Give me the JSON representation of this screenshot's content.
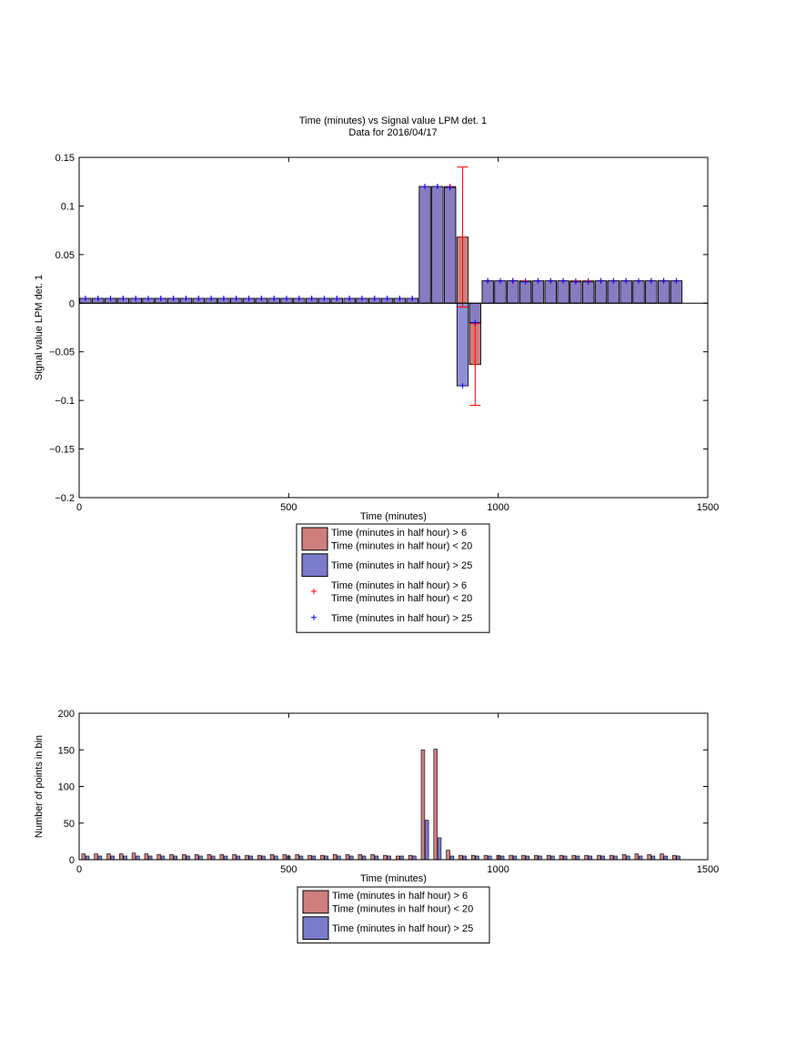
{
  "chart_data": [
    {
      "type": "bar",
      "title": "Time (minutes) vs Signal value LPM det. 1",
      "subtitle": "Data for 2016/04/17",
      "xlabel": "Time (minutes)",
      "ylabel": "Signal value LPM det. 1",
      "xlim": [
        0,
        1500
      ],
      "ylim": [
        -0.2,
        0.15
      ],
      "xticks": [
        "0",
        "500",
        "1000",
        "1500"
      ],
      "yticks": [
        "0.15",
        "0.1",
        "0.05",
        "0",
        "−0.05",
        "−0.1",
        "−0.15",
        "−0.2"
      ],
      "grid": false,
      "legend_position": "bottom-center",
      "series": [
        {
          "name": "Time (minutes in half hour) > 6\nTime (minutes in half hour) < 20",
          "color": "#cf7e7e",
          "x": [
            15,
            45,
            75,
            105,
            135,
            165,
            195,
            225,
            255,
            285,
            315,
            345,
            375,
            405,
            435,
            465,
            495,
            525,
            555,
            585,
            615,
            645,
            675,
            705,
            735,
            765,
            795,
            825,
            855,
            885,
            915,
            945,
            975,
            1005,
            1035,
            1065,
            1095,
            1125,
            1155,
            1185,
            1215,
            1245,
            1275,
            1305,
            1335,
            1365,
            1395,
            1425
          ],
          "values": [
            0.005,
            0.005,
            0.005,
            0.005,
            0.005,
            0.005,
            0.005,
            0.005,
            0.005,
            0.005,
            0.005,
            0.005,
            0.005,
            0.005,
            0.005,
            0.005,
            0.005,
            0.005,
            0.005,
            0.005,
            0.005,
            0.005,
            0.005,
            0.005,
            0.005,
            0.005,
            0.005,
            0.12,
            0.12,
            0.12,
            0.068,
            -0.063,
            0.023,
            0.023,
            0.023,
            0.023,
            0.023,
            0.023,
            0.023,
            0.023,
            0.023,
            0.023,
            0.023,
            0.023,
            0.023,
            0.023,
            0.023,
            0.023
          ],
          "errors": [
            0,
            0,
            0,
            0,
            0,
            0,
            0,
            0,
            0,
            0,
            0,
            0,
            0,
            0,
            0,
            0,
            0,
            0,
            0,
            0,
            0,
            0,
            0,
            0,
            0,
            0,
            0,
            0,
            0,
            0,
            0.072,
            0.042,
            0,
            0,
            0,
            0,
            0,
            0,
            0,
            0,
            0,
            0,
            0,
            0,
            0,
            0,
            0,
            0
          ]
        },
        {
          "name": "Time (minutes in half hour) > 25",
          "color": "#7b7bcc",
          "x": [
            15,
            45,
            75,
            105,
            135,
            165,
            195,
            225,
            255,
            285,
            315,
            345,
            375,
            405,
            435,
            465,
            495,
            525,
            555,
            585,
            615,
            645,
            675,
            705,
            735,
            765,
            795,
            825,
            855,
            885,
            915,
            945,
            975,
            1005,
            1035,
            1065,
            1095,
            1125,
            1155,
            1185,
            1215,
            1245,
            1275,
            1305,
            1335,
            1365,
            1395,
            1425
          ],
          "values": [
            0.005,
            0.005,
            0.005,
            0.005,
            0.005,
            0.005,
            0.005,
            0.005,
            0.005,
            0.005,
            0.005,
            0.005,
            0.005,
            0.005,
            0.005,
            0.005,
            0.005,
            0.005,
            0.005,
            0.005,
            0.005,
            0.005,
            0.005,
            0.005,
            0.005,
            0.005,
            0.005,
            0.12,
            0.12,
            0.119,
            -0.085,
            -0.02,
            0.023,
            0.023,
            0.023,
            0.022,
            0.023,
            0.023,
            0.023,
            0.022,
            0.022,
            0.023,
            0.023,
            0.023,
            0.023,
            0.023,
            0.023,
            0.023
          ]
        }
      ],
      "legend_entries": [
        {
          "lines": [
            "Time (minutes in half hour) > 6",
            "Time (minutes in half hour) < 20"
          ],
          "marker": "patch",
          "color": "#cf7e7e"
        },
        {
          "lines": [
            "Time (minutes in half hour) > 25"
          ],
          "marker": "patch",
          "color": "#7b7bcc"
        },
        {
          "lines": [
            "Time (minutes in half hour) > 6",
            "Time (minutes in half hour) < 20"
          ],
          "marker": "plus",
          "color": "#ff0000"
        },
        {
          "lines": [
            "Time (minutes in half hour) > 25"
          ],
          "marker": "plus",
          "color": "#0000ff"
        }
      ]
    },
    {
      "type": "bar",
      "title": "",
      "xlabel": "Time (minutes)",
      "ylabel": "Number of points in bin",
      "xlim": [
        0,
        1500
      ],
      "ylim": [
        0,
        200
      ],
      "xticks": [
        "0",
        "500",
        "1000",
        "1500"
      ],
      "yticks": [
        "200",
        "150",
        "100",
        "50",
        "0"
      ],
      "grid": false,
      "legend_position": "bottom-center",
      "series": [
        {
          "name": "Time (minutes in half hour) > 6\nTime (minutes in half hour) < 20",
          "color": "#cf7e7e",
          "x": [
            15,
            45,
            75,
            105,
            135,
            165,
            195,
            225,
            255,
            285,
            315,
            345,
            375,
            405,
            435,
            465,
            495,
            525,
            555,
            585,
            615,
            645,
            675,
            705,
            735,
            765,
            795,
            825,
            855,
            885,
            915,
            945,
            975,
            1005,
            1035,
            1065,
            1095,
            1125,
            1155,
            1185,
            1215,
            1245,
            1275,
            1305,
            1335,
            1365,
            1395,
            1425
          ],
          "values": [
            8,
            8,
            8,
            8,
            9,
            8,
            7,
            7,
            7,
            7,
            7,
            7,
            7,
            6,
            6,
            7,
            7,
            7,
            6,
            6,
            7,
            7,
            7,
            7,
            6,
            5,
            6,
            150,
            151,
            13,
            6,
            6,
            6,
            6,
            6,
            6,
            6,
            6,
            6,
            6,
            6,
            6,
            6,
            7,
            8,
            7,
            8,
            6
          ]
        },
        {
          "name": "Time (minutes in half hour) > 25",
          "color": "#7b7bcc",
          "x": [
            15,
            45,
            75,
            105,
            135,
            165,
            195,
            225,
            255,
            285,
            315,
            345,
            375,
            405,
            435,
            465,
            495,
            525,
            555,
            585,
            615,
            645,
            675,
            705,
            735,
            765,
            795,
            825,
            855,
            885,
            915,
            945,
            975,
            1005,
            1035,
            1065,
            1095,
            1125,
            1155,
            1185,
            1215,
            1245,
            1275,
            1305,
            1335,
            1365,
            1395,
            1425
          ],
          "values": [
            5,
            5,
            5,
            5,
            5,
            5,
            5,
            5,
            5,
            5,
            5,
            5,
            5,
            5,
            5,
            5,
            5,
            5,
            5,
            5,
            5,
            5,
            5,
            5,
            5,
            5,
            5,
            54,
            30,
            5,
            5,
            5,
            5,
            5,
            5,
            5,
            5,
            5,
            5,
            5,
            5,
            5,
            5,
            5,
            5,
            5,
            5,
            5
          ]
        }
      ],
      "legend_entries": [
        {
          "lines": [
            "Time (minutes in half hour) > 6",
            "Time (minutes in half hour) < 20"
          ],
          "marker": "patch",
          "color": "#cf7e7e"
        },
        {
          "lines": [
            "Time (minutes in half hour) > 25"
          ],
          "marker": "patch",
          "color": "#7b7bcc"
        }
      ]
    }
  ]
}
